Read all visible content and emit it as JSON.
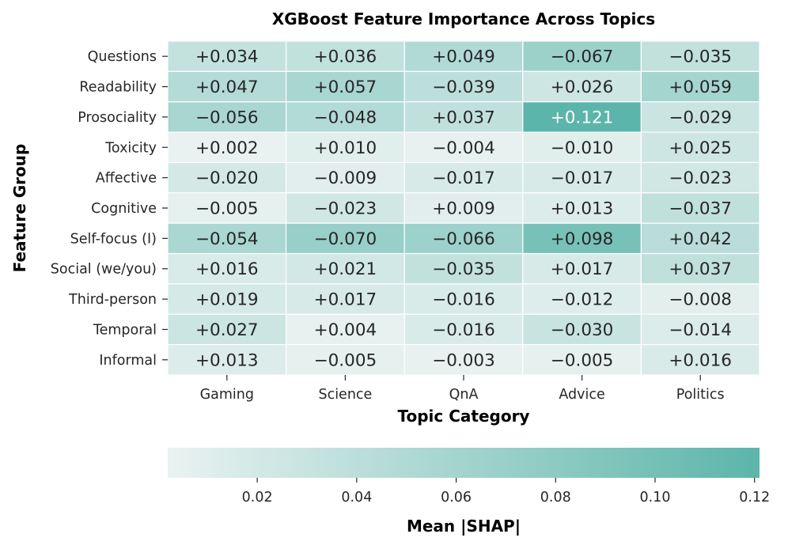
{
  "chart_data": {
    "type": "heatmap",
    "title": "XGBoost Feature Importance Across Topics",
    "xlabel": "Topic Category",
    "ylabel": "Feature Group",
    "columns": [
      "Gaming",
      "Science",
      "QnA",
      "Advice",
      "Politics"
    ],
    "rows": [
      "Questions",
      "Readability",
      "Prosociality",
      "Toxicity",
      "Affective",
      "Cognitive",
      "Self-focus (I)",
      "Social (we/you)",
      "Third-person",
      "Temporal",
      "Informal"
    ],
    "values": [
      [
        0.034,
        0.036,
        0.049,
        -0.067,
        -0.035
      ],
      [
        0.047,
        0.057,
        -0.039,
        0.026,
        0.059
      ],
      [
        -0.056,
        -0.048,
        0.037,
        0.121,
        -0.029
      ],
      [
        0.002,
        0.01,
        -0.004,
        -0.01,
        0.025
      ],
      [
        -0.02,
        -0.009,
        -0.017,
        -0.017,
        -0.023
      ],
      [
        -0.005,
        -0.023,
        0.009,
        0.013,
        -0.037
      ],
      [
        -0.054,
        -0.07,
        -0.066,
        0.098,
        0.042
      ],
      [
        0.016,
        0.021,
        -0.035,
        0.017,
        0.037
      ],
      [
        0.019,
        0.017,
        -0.016,
        -0.012,
        -0.008
      ],
      [
        0.027,
        0.004,
        -0.016,
        -0.03,
        -0.014
      ],
      [
        0.013,
        -0.005,
        -0.003,
        -0.005,
        0.016
      ]
    ],
    "labels": [
      [
        "+0.034",
        "+0.036",
        "+0.049",
        "−0.067",
        "−0.035"
      ],
      [
        "+0.047",
        "+0.057",
        "−0.039",
        "+0.026",
        "+0.059"
      ],
      [
        "−0.056",
        "−0.048",
        "+0.037",
        "+0.121",
        "−0.029"
      ],
      [
        "+0.002",
        "+0.010",
        "−0.004",
        "−0.010",
        "+0.025"
      ],
      [
        "−0.020",
        "−0.009",
        "−0.017",
        "−0.017",
        "−0.023"
      ],
      [
        "−0.005",
        "−0.023",
        "+0.009",
        "+0.013",
        "−0.037"
      ],
      [
        "−0.054",
        "−0.070",
        "−0.066",
        "+0.098",
        "+0.042"
      ],
      [
        "+0.016",
        "+0.021",
        "−0.035",
        "+0.017",
        "+0.037"
      ],
      [
        "+0.019",
        "+0.017",
        "−0.016",
        "−0.012",
        "−0.008"
      ],
      [
        "+0.027",
        "+0.004",
        "−0.016",
        "−0.030",
        "−0.014"
      ],
      [
        "+0.013",
        "−0.005",
        "−0.003",
        "−0.005",
        "+0.016"
      ]
    ],
    "color_metric": "absolute value",
    "colorbar": {
      "label": "Mean |SHAP|",
      "min": 0.002,
      "max": 0.121,
      "ticks": [
        0.02,
        0.04,
        0.06,
        0.08,
        0.1,
        0.12
      ],
      "tick_labels": [
        "0.02",
        "0.04",
        "0.06",
        "0.08",
        "0.10",
        "0.12"
      ],
      "orientation": "horizontal",
      "position": "bottom"
    },
    "colors": {
      "low": "#e9f2f1",
      "high": "#5cb5aa",
      "text_dark": "#262626",
      "text_light": "#ffffff",
      "grid": "#ffffff"
    }
  }
}
